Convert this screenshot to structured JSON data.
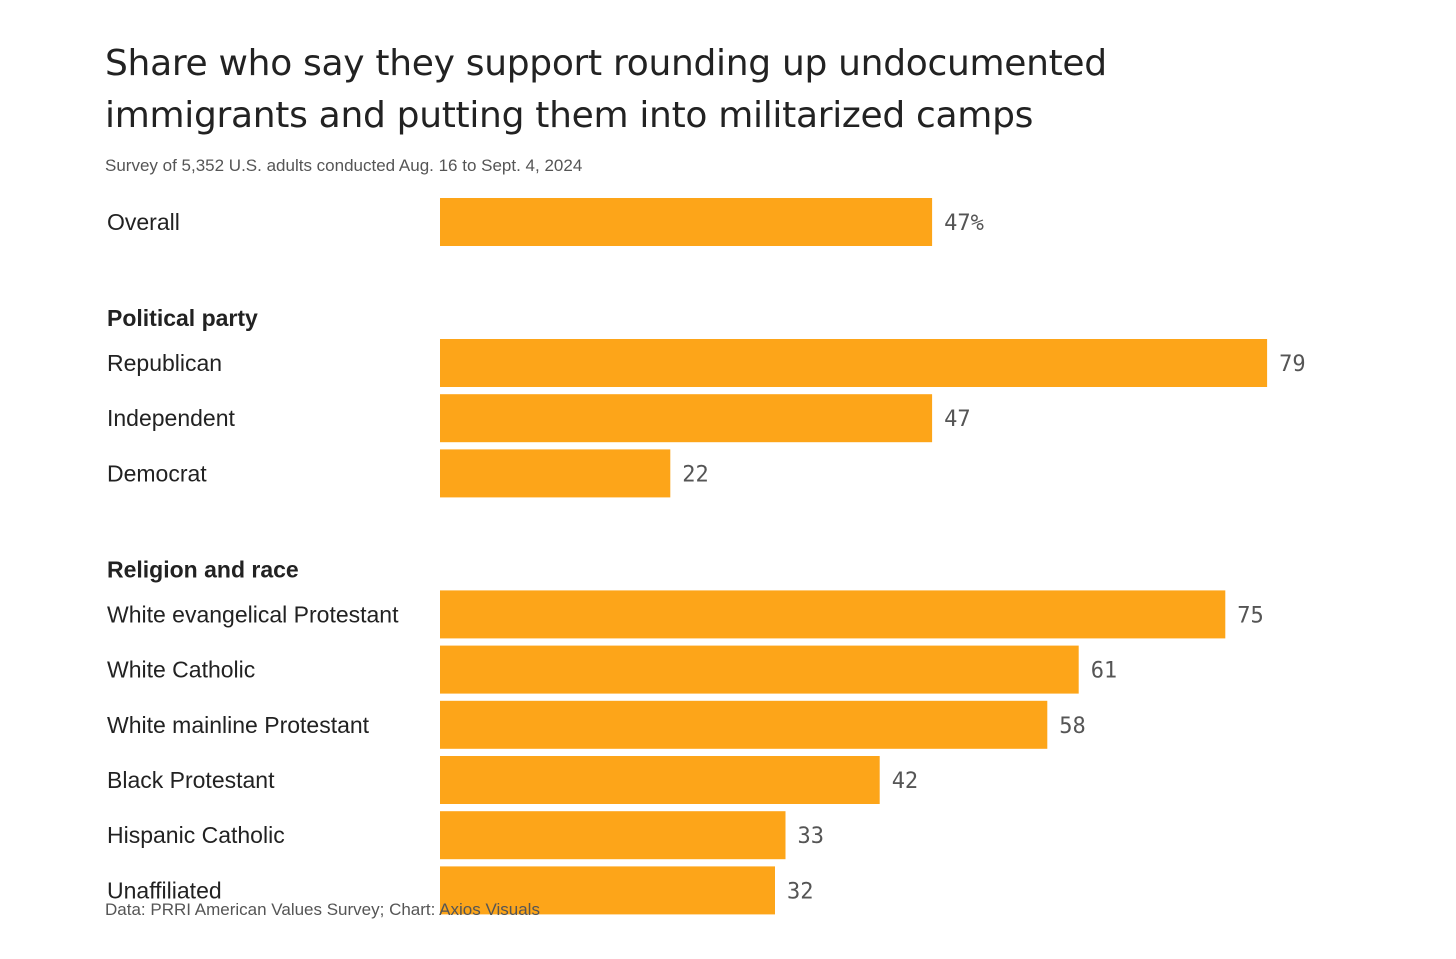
{
  "title": "Share who say they support rounding up undocumented immigrants and putting them into militarized camps",
  "subtitle": "Survey of 5,352 U.S. adults conducted Aug. 16 to Sept. 4, 2024",
  "source": "Data: PRRI American Values Survey; Chart: Axios Visuals",
  "colors": {
    "bar": "#FDA519",
    "label": "#222222",
    "value": "#555555"
  },
  "chart_data": {
    "type": "bar",
    "orientation": "horizontal",
    "value_suffix_first": "%",
    "xlim": [
      0,
      100
    ],
    "grid": false,
    "groups": [
      {
        "heading": "",
        "items": [
          {
            "label": "Overall",
            "value": 47,
            "value_label": "47%"
          }
        ]
      },
      {
        "heading": "Political party",
        "items": [
          {
            "label": "Republican",
            "value": 79,
            "value_label": "79"
          },
          {
            "label": "Independent",
            "value": 47,
            "value_label": "47"
          },
          {
            "label": "Democrat",
            "value": 22,
            "value_label": "22"
          }
        ]
      },
      {
        "heading": "Religion and race",
        "items": [
          {
            "label": "White evangelical Protestant",
            "value": 75,
            "value_label": "75"
          },
          {
            "label": "White Catholic",
            "value": 61,
            "value_label": "61"
          },
          {
            "label": "White mainline Protestant",
            "value": 58,
            "value_label": "58"
          },
          {
            "label": "Black Protestant",
            "value": 42,
            "value_label": "42"
          },
          {
            "label": "Hispanic Catholic",
            "value": 33,
            "value_label": "33"
          },
          {
            "label": "Unaffiliated",
            "value": 32,
            "value_label": "32"
          }
        ]
      }
    ]
  }
}
